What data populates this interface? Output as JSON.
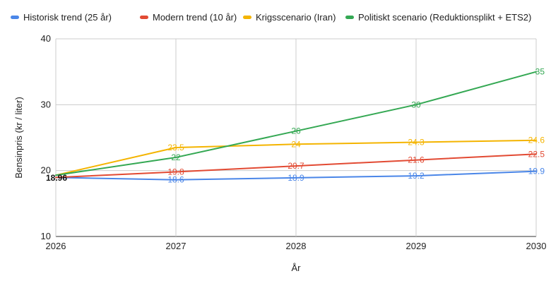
{
  "chart_data": {
    "type": "line",
    "x": [
      2026,
      2027,
      2028,
      2029,
      2030
    ],
    "xlabel": "År",
    "ylabel": "Bensinpris (kr / liter)",
    "ylim": [
      10,
      40
    ],
    "yticks": [
      10,
      20,
      30,
      40
    ],
    "xticks": [
      "2026",
      "2027",
      "2028",
      "2029",
      "2030"
    ],
    "grid": true,
    "legend": "top",
    "start_label": "18.96",
    "series": [
      {
        "name": "Historisk trend (25 år)",
        "color": "#4a86e8",
        "values": [
          18.96,
          18.6,
          18.9,
          19.2,
          19.9
        ],
        "labels": [
          "",
          "18.6",
          "18.9",
          "19.2",
          "19.9"
        ]
      },
      {
        "name": "Modern trend (10 år)",
        "color": "#e24a33",
        "values": [
          18.96,
          19.8,
          20.7,
          21.6,
          22.5
        ],
        "labels": [
          "",
          "19.8",
          "20.7",
          "21.6",
          "22.5"
        ]
      },
      {
        "name": "Krigsscenario (Iran)",
        "color": "#f4b400",
        "values": [
          19.3,
          23.5,
          24,
          24.3,
          24.6
        ],
        "labels": [
          "",
          "23.5",
          "24",
          "24.3",
          "24.6"
        ]
      },
      {
        "name": "Politiskt scenario (Reduktionsplikt + ETS2)",
        "color": "#34a853",
        "values": [
          19.3,
          22,
          26,
          30,
          35
        ],
        "labels": [
          "",
          "22",
          "26",
          "30",
          "35"
        ]
      }
    ]
  }
}
